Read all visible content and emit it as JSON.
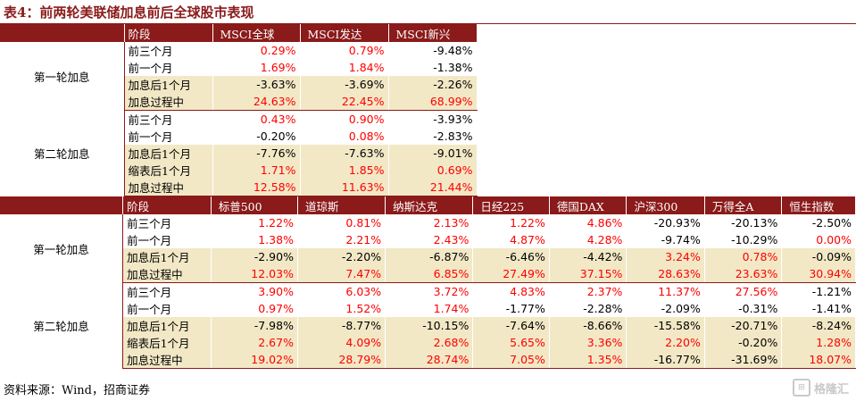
{
  "title": "表4：前两轮美联储加息前后全球股市表现",
  "source": "资料来源：Wind，招商证券",
  "watermark": "格隆汇",
  "colors": {
    "header": "#8b1a1a",
    "shade": "#f2e8c6",
    "positive": "#ff0000",
    "negative": "#000000"
  },
  "table1": {
    "header_label": "阶段",
    "columns": [
      "MSCI全球",
      "MSCI发达",
      "MSCI新兴"
    ],
    "groups": [
      {
        "name": "第一轮加息",
        "rows": [
          {
            "label": "前三个月",
            "shade": false,
            "values": [
              "0.29%",
              "0.79%",
              "-9.48%"
            ]
          },
          {
            "label": "前一个月",
            "shade": false,
            "values": [
              "1.69%",
              "1.84%",
              "-1.38%"
            ]
          },
          {
            "label": "加息后1个月",
            "shade": true,
            "values": [
              "-3.63%",
              "-3.69%",
              "-2.26%"
            ]
          },
          {
            "label": "加息过程中",
            "shade": true,
            "values": [
              "24.63%",
              "22.45%",
              "68.99%"
            ]
          }
        ]
      },
      {
        "name": "第二轮加息",
        "rows": [
          {
            "label": "前三个月",
            "shade": false,
            "values": [
              "0.43%",
              "0.90%",
              "-3.93%"
            ]
          },
          {
            "label": "前一个月",
            "shade": false,
            "values": [
              "-0.20%",
              "0.08%",
              "-2.83%"
            ]
          },
          {
            "label": "加息后1个月",
            "shade": true,
            "values": [
              "-7.76%",
              "-7.63%",
              "-9.01%"
            ]
          },
          {
            "label": "缩表后1个月",
            "shade": true,
            "values": [
              "1.71%",
              "1.85%",
              "0.69%"
            ]
          },
          {
            "label": "加息过程中",
            "shade": true,
            "values": [
              "12.58%",
              "11.63%",
              "21.44%"
            ]
          }
        ]
      }
    ]
  },
  "table2": {
    "header_label": "阶段",
    "columns": [
      "标普500",
      "道琼斯",
      "纳斯达克",
      "日经225",
      "德国DAX",
      "沪深300",
      "万得全A",
      "恒生指数"
    ],
    "groups": [
      {
        "name": "第一轮加息",
        "rows": [
          {
            "label": "前三个月",
            "shade": false,
            "values": [
              "1.22%",
              "0.81%",
              "2.13%",
              "1.22%",
              "4.86%",
              "-20.93%",
              "-20.13%",
              "-2.50%"
            ]
          },
          {
            "label": "前一个月",
            "shade": false,
            "values": [
              "1.38%",
              "2.21%",
              "2.43%",
              "4.87%",
              "4.28%",
              "-9.74%",
              "-10.29%",
              "0.00%"
            ]
          },
          {
            "label": "加息后1个月",
            "shade": true,
            "values": [
              "-2.90%",
              "-2.20%",
              "-6.87%",
              "-6.46%",
              "-4.42%",
              "3.24%",
              "0.78%",
              "-0.09%"
            ]
          },
          {
            "label": "加息过程中",
            "shade": true,
            "values": [
              "12.03%",
              "7.47%",
              "6.85%",
              "27.49%",
              "37.15%",
              "28.63%",
              "23.63%",
              "30.94%"
            ]
          }
        ]
      },
      {
        "name": "第二轮加息",
        "rows": [
          {
            "label": "前三个月",
            "shade": false,
            "values": [
              "3.90%",
              "6.03%",
              "3.72%",
              "4.83%",
              "2.37%",
              "11.37%",
              "27.56%",
              "-1.21%"
            ]
          },
          {
            "label": "前一个月",
            "shade": false,
            "values": [
              "0.97%",
              "1.52%",
              "1.74%",
              "-1.77%",
              "-2.28%",
              "-2.09%",
              "-0.31%",
              "-1.41%"
            ]
          },
          {
            "label": "加息后1个月",
            "shade": true,
            "values": [
              "-7.98%",
              "-8.77%",
              "-10.15%",
              "-7.64%",
              "-8.66%",
              "-15.58%",
              "-20.71%",
              "-8.24%"
            ]
          },
          {
            "label": "缩表后1个月",
            "shade": true,
            "values": [
              "2.67%",
              "4.09%",
              "2.68%",
              "5.65%",
              "3.36%",
              "2.20%",
              "-0.20%",
              "1.28%"
            ]
          },
          {
            "label": "加息过程中",
            "shade": true,
            "values": [
              "19.02%",
              "28.79%",
              "28.74%",
              "7.05%",
              "1.35%",
              "-16.77%",
              "-31.69%",
              "18.07%"
            ]
          }
        ]
      }
    ]
  }
}
